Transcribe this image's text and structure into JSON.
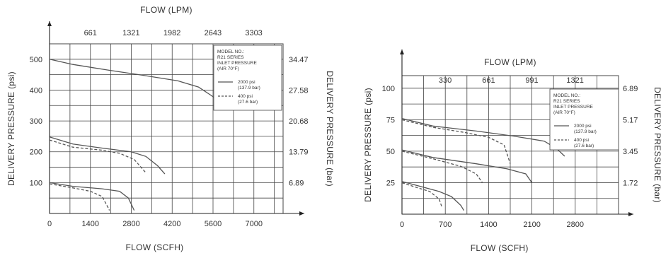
{
  "chart_data": [
    {
      "type": "line",
      "top_axis_label": "FLOW (LPM)",
      "top_ticks": [
        "661",
        "1321",
        "1982",
        "2643",
        "3303"
      ],
      "top_tick_values": [
        661,
        1321,
        1982,
        2643,
        3303
      ],
      "xlabel": "FLOW (SCFH)",
      "ylabel": "DELIVERY PRESSURE (psi)",
      "right_axis_label": "DELIVERY PRESSURE (bar)",
      "x_ticks": [
        "0",
        "1400",
        "2800",
        "4200",
        "5600",
        "7000"
      ],
      "x_tick_values": [
        0,
        1400,
        2800,
        4200,
        5600,
        7000
      ],
      "y_ticks": [
        "100",
        "200",
        "300",
        "400",
        "500"
      ],
      "y_tick_values": [
        100,
        200,
        300,
        400,
        500
      ],
      "right_ticks": [
        "6.89",
        "13.79",
        "20.68",
        "27.58",
        "34.47"
      ],
      "right_tick_values": [
        100,
        200,
        300,
        400,
        500
      ],
      "xlim": [
        0,
        8000
      ],
      "ylim": [
        0,
        550
      ],
      "grid": true,
      "legend": {
        "placement": "top-right",
        "header": [
          "MODEL NO.:",
          "R21 SERIES",
          "INLET PRESSURE",
          "(AIR 70°F)"
        ],
        "entries": [
          {
            "style": "solid",
            "label": [
              "2000 psi",
              "(137.9 bar)"
            ]
          },
          {
            "style": "dashed",
            "label": [
              "400 psi",
              "(27.6 bar)"
            ]
          }
        ]
      },
      "series": [
        {
          "style": "solid",
          "points": [
            [
              0,
              500
            ],
            [
              800,
              483
            ],
            [
              2000,
              465
            ],
            [
              3200,
              448
            ],
            [
              4400,
              430
            ],
            [
              5100,
              410
            ],
            [
              5500,
              385
            ],
            [
              5800,
              365
            ]
          ]
        },
        {
          "style": "solid",
          "points": [
            [
              0,
              248
            ],
            [
              800,
              225
            ],
            [
              1800,
              212
            ],
            [
              2800,
              200
            ],
            [
              3300,
              185
            ],
            [
              3700,
              155
            ],
            [
              3950,
              128
            ]
          ]
        },
        {
          "style": "dashed",
          "points": [
            [
              0,
              238
            ],
            [
              800,
              215
            ],
            [
              1800,
              205
            ],
            [
              2400,
              195
            ],
            [
              2900,
              175
            ],
            [
              3300,
              132
            ]
          ]
        },
        {
          "style": "solid",
          "points": [
            [
              0,
              100
            ],
            [
              800,
              88
            ],
            [
              1800,
              80
            ],
            [
              2400,
              72
            ],
            [
              2700,
              50
            ],
            [
              2900,
              10
            ]
          ]
        },
        {
          "style": "dashed",
          "points": [
            [
              0,
              96
            ],
            [
              800,
              83
            ],
            [
              1400,
              72
            ],
            [
              1800,
              55
            ],
            [
              2000,
              20
            ],
            [
              2050,
              10
            ]
          ]
        }
      ]
    },
    {
      "type": "line",
      "top_axis_label": "FLOW (LPM)",
      "top_ticks": [
        "330",
        "661",
        "991",
        "1321"
      ],
      "top_tick_values": [
        330,
        661,
        991,
        1321
      ],
      "xlabel": "FLOW (SCFH)",
      "ylabel": "DELIVERY PRESSURE (psi)",
      "right_axis_label": "DELIVERY PRESSURE (bar)",
      "x_ticks": [
        "0",
        "700",
        "1400",
        "2100",
        "2800"
      ],
      "x_tick_values": [
        0,
        700,
        1400,
        2100,
        2800
      ],
      "y_ticks": [
        "25",
        "50",
        "75",
        "100"
      ],
      "y_tick_values": [
        25,
        50,
        75,
        100
      ],
      "right_ticks": [
        "1.72",
        "3.45",
        "5.17",
        "6.89"
      ],
      "right_tick_values": [
        25,
        50,
        75,
        100
      ],
      "xlim": [
        0,
        3500
      ],
      "ylim": [
        0,
        110
      ],
      "grid": true,
      "legend": {
        "placement": "top-right",
        "header": [
          "MODEL NO.:",
          "R21 SERIES",
          "INLET PRESSURE",
          "(AIR 70°F)"
        ],
        "entries": [
          {
            "style": "solid",
            "label": [
              "2000 psi",
              "(137.9 bar)"
            ]
          },
          {
            "style": "dashed",
            "label": [
              "400 psi",
              "(27.6 bar)"
            ]
          }
        ]
      },
      "series": [
        {
          "style": "solid",
          "points": [
            [
              0,
              76
            ],
            [
              500,
              70
            ],
            [
              1200,
              66
            ],
            [
              1800,
              62
            ],
            [
              2300,
              58
            ],
            [
              2500,
              52
            ],
            [
              2630,
              46
            ]
          ]
        },
        {
          "style": "dashed",
          "points": [
            [
              0,
              75
            ],
            [
              500,
              69
            ],
            [
              1000,
              65
            ],
            [
              1400,
              61
            ],
            [
              1650,
              55
            ],
            [
              1750,
              40
            ]
          ]
        },
        {
          "style": "solid",
          "points": [
            [
              0,
              51
            ],
            [
              500,
              45
            ],
            [
              1200,
              40
            ],
            [
              1700,
              36
            ],
            [
              2000,
              32
            ],
            [
              2100,
              25
            ]
          ]
        },
        {
          "style": "dashed",
          "points": [
            [
              0,
              50
            ],
            [
              500,
              44
            ],
            [
              950,
              38
            ],
            [
              1200,
              32
            ],
            [
              1300,
              25
            ]
          ]
        },
        {
          "style": "solid",
          "points": [
            [
              0,
              26
            ],
            [
              300,
              22
            ],
            [
              600,
              18
            ],
            [
              800,
              14
            ],
            [
              950,
              7
            ],
            [
              1000,
              3
            ]
          ]
        },
        {
          "style": "dashed",
          "points": [
            [
              0,
              25
            ],
            [
              250,
              21
            ],
            [
              450,
              18
            ],
            [
              600,
              12
            ],
            [
              650,
              5
            ]
          ]
        }
      ]
    }
  ]
}
